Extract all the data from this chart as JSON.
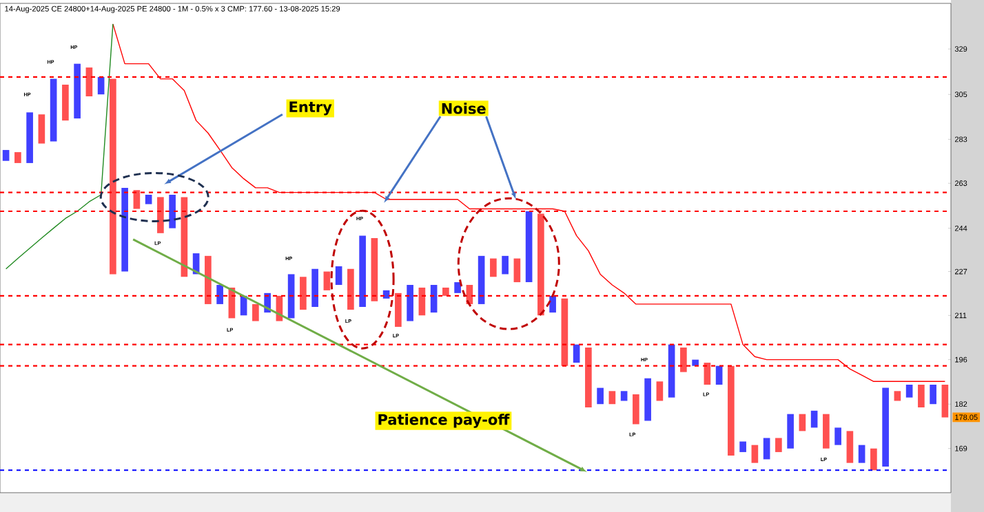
{
  "chart_data": {
    "type": "bar",
    "title": "14-Aug-2025 CE 24800+14-Aug-2025 PE 24800 - 1M - 0.5% x 3 CMP: 177.60 - 13-08-2025 15:29",
    "categories": [
      null,
      null,
      null,
      null,
      null,
      null,
      null,
      null,
      null,
      null,
      null,
      null,
      null,
      null,
      null,
      null,
      null,
      null,
      null,
      null,
      null,
      null,
      null,
      null,
      null,
      null,
      null,
      null,
      null,
      null,
      null,
      null,
      null,
      null,
      null,
      null,
      null,
      null,
      null,
      null,
      null,
      null,
      null,
      null,
      null,
      null,
      null,
      null,
      null,
      null,
      null,
      null,
      null,
      null,
      null,
      null,
      null,
      null,
      null,
      null,
      null,
      null,
      null,
      null,
      null,
      null,
      null,
      null,
      null,
      null,
      null,
      null,
      null,
      null,
      null,
      null,
      null,
      null,
      null,
      null
    ],
    "series": [
      {
        "base": [
          273,
          272,
          272,
          281,
          282,
          292,
          293,
          304,
          305,
          226,
          227,
          252,
          254,
          242,
          244,
          225,
          226,
          215,
          215,
          210,
          211,
          209,
          212,
          209,
          210,
          213,
          214,
          220,
          222,
          213,
          214,
          216,
          217,
          207,
          209,
          211,
          212,
          218,
          219,
          215,
          215,
          225,
          226,
          223,
          223,
          211,
          212,
          194,
          195,
          181,
          182,
          182,
          183,
          176,
          177,
          183,
          184,
          192,
          194,
          188,
          188,
          167,
          168,
          165,
          166,
          168,
          169,
          174,
          175,
          169,
          170,
          165,
          165,
          163,
          164,
          183,
          184,
          181,
          182,
          178
        ],
        "values": [
          5,
          5,
          24,
          14,
          31,
          18,
          28,
          15,
          9,
          87,
          34,
          8,
          4,
          15,
          14,
          32,
          8,
          18,
          7,
          11,
          7,
          6,
          7,
          9,
          16,
          12,
          14,
          7,
          7,
          15,
          27,
          24,
          3,
          12,
          13,
          10,
          10,
          3,
          4,
          7,
          18,
          7,
          7,
          9,
          28,
          39,
          6,
          23,
          6,
          19,
          5,
          4,
          3,
          9,
          13,
          6,
          17,
          8,
          2,
          7,
          6,
          27,
          3,
          5,
          6,
          4,
          10,
          5,
          5,
          10,
          5,
          9,
          5,
          6,
          23,
          3,
          4,
          7,
          6,
          10
        ],
        "colors": [
          "#4040ff",
          "#ff5050",
          "#4040ff",
          "#ff5050",
          "#4040ff",
          "#ff5050",
          "#4040ff",
          "#ff5050",
          "#4040ff",
          "#ff5050",
          "#4040ff",
          "#ff5050",
          "#4040ff",
          "#ff5050",
          "#4040ff",
          "#ff5050",
          "#4040ff",
          "#ff5050",
          "#4040ff",
          "#ff5050",
          "#4040ff",
          "#ff5050",
          "#4040ff",
          "#ff5050",
          "#4040ff",
          "#ff5050",
          "#4040ff",
          "#ff5050",
          "#4040ff",
          "#ff5050",
          "#4040ff",
          "#ff5050",
          "#4040ff",
          "#ff5050",
          "#4040ff",
          "#ff5050",
          "#4040ff",
          "#ff5050",
          "#4040ff",
          "#ff5050",
          "#4040ff",
          "#ff5050",
          "#4040ff",
          "#ff5050",
          "#4040ff",
          "#ff5050",
          "#4040ff",
          "#ff5050",
          "#4040ff",
          "#ff5050",
          "#4040ff",
          "#ff5050",
          "#4040ff",
          "#ff5050",
          "#4040ff",
          "#ff5050",
          "#4040ff",
          "#ff5050",
          "#4040ff",
          "#ff5050",
          "#4040ff",
          "#ff5050",
          "#4040ff",
          "#ff5050",
          "#4040ff",
          "#ff5050",
          "#4040ff",
          "#ff5050",
          "#4040ff",
          "#ff5050",
          "#4040ff",
          "#ff5050",
          "#4040ff",
          "#ff5050",
          "#4040ff",
          "#ff5050",
          "#4040ff",
          "#ff5050",
          "#4040ff",
          "#ff5050"
        ]
      },
      {
        "type": "line",
        "color": "#ff0000",
        "values": [
          null,
          null,
          null,
          null,
          null,
          null,
          null,
          null,
          null,
          343,
          321,
          321,
          321,
          313,
          313,
          307,
          292,
          286,
          278,
          270,
          265,
          261,
          261,
          259,
          259,
          259,
          259,
          259,
          259,
          259,
          259,
          259,
          256,
          256,
          256,
          256,
          256,
          256,
          256,
          252,
          252,
          252,
          252,
          252,
          252,
          252,
          252,
          251,
          241,
          235,
          226,
          222,
          219,
          215,
          215,
          215,
          215,
          215,
          215,
          215,
          215,
          215,
          201,
          197,
          196,
          196,
          196,
          196,
          196,
          196,
          196,
          193,
          191,
          189,
          189,
          189,
          189,
          189,
          189,
          189
        ]
      },
      {
        "type": "line",
        "color": "#228b22",
        "values": [
          228,
          232,
          236,
          240,
          244,
          248,
          251,
          255,
          258,
          343,
          null,
          null,
          null,
          null,
          null,
          null,
          null,
          null,
          null,
          null,
          null,
          null,
          null,
          null,
          null,
          null,
          null,
          null,
          null,
          null,
          null,
          null,
          null,
          null,
          null,
          null,
          null,
          null,
          null,
          null,
          null,
          null,
          null,
          null,
          null,
          null,
          null,
          null,
          null,
          null,
          null,
          null,
          null,
          null,
          null,
          null,
          null,
          null,
          null,
          null,
          null,
          null,
          null,
          null,
          null,
          null,
          null,
          null,
          null,
          null,
          null,
          null,
          null,
          null,
          null,
          null,
          null,
          null,
          null,
          null
        ]
      }
    ],
    "ylim": [
      157,
      355
    ],
    "log": "y",
    "tick_labels": "y",
    "yticks": [
      169,
      182,
      196,
      211,
      227,
      244,
      263,
      283,
      305,
      329
    ],
    "line_style": "solid",
    "ref_lines": [
      {
        "axis": "y",
        "value": 314,
        "color": "#ff0000",
        "line_style": "dashed"
      },
      {
        "axis": "y",
        "value": 259,
        "color": "#ff0000",
        "line_style": "dashed"
      },
      {
        "axis": "y",
        "value": 251,
        "color": "#ff0000",
        "line_style": "dashed"
      },
      {
        "axis": "y",
        "value": 218,
        "color": "#ff0000",
        "line_style": "dashed"
      },
      {
        "axis": "y",
        "value": 201,
        "color": "#ff0000",
        "line_style": "dashed"
      },
      {
        "axis": "y",
        "value": 194,
        "color": "#ff0000",
        "line_style": "dashed"
      },
      {
        "axis": "y",
        "value": 163,
        "color": "#0000ff",
        "line_style": "dashed"
      }
    ],
    "annotations": [
      "Entry",
      "Noise",
      "Patience pay-off",
      "HP",
      "HP",
      "HP",
      "HP",
      "HP",
      "HP",
      "LP",
      "LP",
      "LP",
      "LP",
      "LP",
      "LP",
      "LP",
      {
        "text": "178.05",
        "y": 178.05
      }
    ]
  }
}
